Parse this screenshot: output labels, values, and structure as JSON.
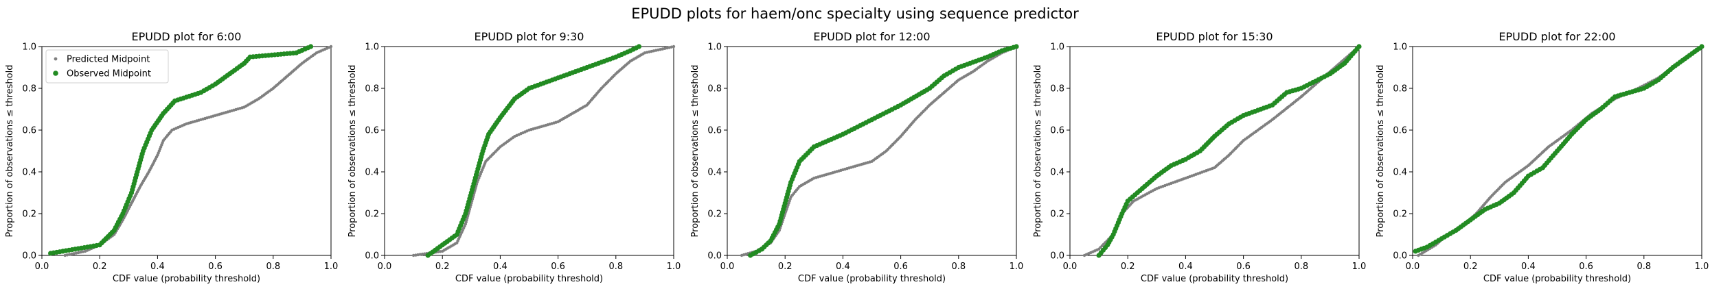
{
  "suptitle": "EPUDD plots for haem/onc specialty using sequence predictor",
  "legend": {
    "predicted_label": "Predicted Midpoint",
    "observed_label": "Observed Midpoint"
  },
  "colors": {
    "predicted": "#808080",
    "observed": "#228B22",
    "axis": "#000000"
  },
  "chart_data": [
    {
      "type": "scatter",
      "title": "EPUDD plot for 6:00",
      "xlabel": "CDF value (probability threshold)",
      "ylabel": "Proportion of observations ≤ threshold",
      "xlim": [
        0,
        1
      ],
      "ylim": [
        0,
        1
      ],
      "xticks": [
        "0.0",
        "0.2",
        "0.4",
        "0.6",
        "0.8",
        "1.0"
      ],
      "yticks": [
        "0.0",
        "0.2",
        "0.4",
        "0.6",
        "0.8",
        "1.0"
      ],
      "legend_position": "upper-left",
      "series": [
        {
          "name": "Predicted Midpoint",
          "points": [
            [
              0.08,
              0.0
            ],
            [
              0.15,
              0.02
            ],
            [
              0.2,
              0.05
            ],
            [
              0.25,
              0.1
            ],
            [
              0.28,
              0.17
            ],
            [
              0.31,
              0.25
            ],
            [
              0.34,
              0.33
            ],
            [
              0.37,
              0.4
            ],
            [
              0.4,
              0.48
            ],
            [
              0.42,
              0.55
            ],
            [
              0.45,
              0.6
            ],
            [
              0.5,
              0.63
            ],
            [
              0.55,
              0.65
            ],
            [
              0.6,
              0.67
            ],
            [
              0.65,
              0.69
            ],
            [
              0.7,
              0.71
            ],
            [
              0.75,
              0.75
            ],
            [
              0.8,
              0.8
            ],
            [
              0.85,
              0.86
            ],
            [
              0.9,
              0.92
            ],
            [
              0.95,
              0.97
            ],
            [
              1.0,
              1.0
            ]
          ]
        },
        {
          "name": "Observed Midpoint",
          "points": [
            [
              0.03,
              0.01
            ],
            [
              0.2,
              0.05
            ],
            [
              0.25,
              0.12
            ],
            [
              0.28,
              0.2
            ],
            [
              0.31,
              0.3
            ],
            [
              0.33,
              0.4
            ],
            [
              0.35,
              0.5
            ],
            [
              0.38,
              0.6
            ],
            [
              0.42,
              0.68
            ],
            [
              0.46,
              0.74
            ],
            [
              0.55,
              0.78
            ],
            [
              0.6,
              0.82
            ],
            [
              0.65,
              0.87
            ],
            [
              0.7,
              0.92
            ],
            [
              0.72,
              0.95
            ],
            [
              0.88,
              0.97
            ],
            [
              0.93,
              1.0
            ]
          ]
        }
      ]
    },
    {
      "type": "scatter",
      "title": "EPUDD plot for 9:30",
      "xlabel": "CDF value (probability threshold)",
      "ylabel": "Proportion of observations ≤ threshold",
      "xlim": [
        0,
        1
      ],
      "ylim": [
        0,
        1
      ],
      "xticks": [
        "0.0",
        "0.2",
        "0.4",
        "0.6",
        "0.8",
        "1.0"
      ],
      "yticks": [
        "0.0",
        "0.2",
        "0.4",
        "0.6",
        "0.8",
        "1.0"
      ],
      "series": [
        {
          "name": "Predicted Midpoint",
          "points": [
            [
              0.1,
              0.0
            ],
            [
              0.2,
              0.02
            ],
            [
              0.25,
              0.06
            ],
            [
              0.28,
              0.15
            ],
            [
              0.3,
              0.25
            ],
            [
              0.32,
              0.35
            ],
            [
              0.35,
              0.45
            ],
            [
              0.4,
              0.52
            ],
            [
              0.45,
              0.57
            ],
            [
              0.5,
              0.6
            ],
            [
              0.6,
              0.64
            ],
            [
              0.65,
              0.68
            ],
            [
              0.7,
              0.72
            ],
            [
              0.75,
              0.8
            ],
            [
              0.8,
              0.87
            ],
            [
              0.85,
              0.93
            ],
            [
              0.9,
              0.97
            ],
            [
              1.0,
              1.0
            ]
          ]
        },
        {
          "name": "Observed Midpoint",
          "points": [
            [
              0.15,
              0.0
            ],
            [
              0.2,
              0.05
            ],
            [
              0.25,
              0.1
            ],
            [
              0.28,
              0.2
            ],
            [
              0.3,
              0.3
            ],
            [
              0.32,
              0.4
            ],
            [
              0.34,
              0.5
            ],
            [
              0.36,
              0.58
            ],
            [
              0.4,
              0.66
            ],
            [
              0.45,
              0.75
            ],
            [
              0.5,
              0.8
            ],
            [
              0.6,
              0.85
            ],
            [
              0.7,
              0.9
            ],
            [
              0.8,
              0.95
            ],
            [
              0.85,
              0.98
            ],
            [
              0.88,
              1.0
            ]
          ]
        }
      ]
    },
    {
      "type": "scatter",
      "title": "EPUDD plot for 12:00",
      "xlabel": "CDF value (probability threshold)",
      "ylabel": "Proportion of observations ≤ threshold",
      "xlim": [
        0,
        1
      ],
      "ylim": [
        0,
        1
      ],
      "xticks": [
        "0.0",
        "0.2",
        "0.4",
        "0.6",
        "0.8",
        "1.0"
      ],
      "yticks": [
        "0.0",
        "0.2",
        "0.4",
        "0.6",
        "0.8",
        "1.0"
      ],
      "series": [
        {
          "name": "Predicted Midpoint",
          "points": [
            [
              0.05,
              0.0
            ],
            [
              0.1,
              0.02
            ],
            [
              0.15,
              0.06
            ],
            [
              0.18,
              0.12
            ],
            [
              0.2,
              0.2
            ],
            [
              0.22,
              0.28
            ],
            [
              0.25,
              0.33
            ],
            [
              0.3,
              0.37
            ],
            [
              0.4,
              0.41
            ],
            [
              0.5,
              0.45
            ],
            [
              0.55,
              0.5
            ],
            [
              0.6,
              0.57
            ],
            [
              0.65,
              0.65
            ],
            [
              0.7,
              0.72
            ],
            [
              0.75,
              0.78
            ],
            [
              0.8,
              0.84
            ],
            [
              0.85,
              0.88
            ],
            [
              0.9,
              0.93
            ],
            [
              0.95,
              0.97
            ],
            [
              1.0,
              1.0
            ]
          ]
        },
        {
          "name": "Observed Midpoint",
          "points": [
            [
              0.08,
              0.0
            ],
            [
              0.12,
              0.03
            ],
            [
              0.15,
              0.07
            ],
            [
              0.18,
              0.15
            ],
            [
              0.2,
              0.25
            ],
            [
              0.22,
              0.35
            ],
            [
              0.25,
              0.45
            ],
            [
              0.3,
              0.52
            ],
            [
              0.4,
              0.58
            ],
            [
              0.5,
              0.65
            ],
            [
              0.6,
              0.72
            ],
            [
              0.7,
              0.8
            ],
            [
              0.75,
              0.86
            ],
            [
              0.8,
              0.9
            ],
            [
              0.9,
              0.95
            ],
            [
              0.95,
              0.98
            ],
            [
              1.0,
              1.0
            ]
          ]
        }
      ]
    },
    {
      "type": "scatter",
      "title": "EPUDD plot for 15:30",
      "xlabel": "CDF value (probability threshold)",
      "ylabel": "Proportion of observations ≤ threshold",
      "xlim": [
        0,
        1
      ],
      "ylim": [
        0,
        1
      ],
      "xticks": [
        "0.0",
        "0.2",
        "0.4",
        "0.6",
        "0.8",
        "1.0"
      ],
      "yticks": [
        "0.0",
        "0.2",
        "0.4",
        "0.6",
        "0.8",
        "1.0"
      ],
      "series": [
        {
          "name": "Predicted Midpoint",
          "points": [
            [
              0.05,
              0.0
            ],
            [
              0.1,
              0.03
            ],
            [
              0.15,
              0.1
            ],
            [
              0.18,
              0.2
            ],
            [
              0.22,
              0.26
            ],
            [
              0.3,
              0.32
            ],
            [
              0.4,
              0.37
            ],
            [
              0.5,
              0.42
            ],
            [
              0.55,
              0.48
            ],
            [
              0.6,
              0.55
            ],
            [
              0.7,
              0.65
            ],
            [
              0.8,
              0.76
            ],
            [
              0.85,
              0.82
            ],
            [
              0.9,
              0.88
            ],
            [
              0.95,
              0.94
            ],
            [
              1.0,
              1.0
            ]
          ]
        },
        {
          "name": "Observed Midpoint",
          "points": [
            [
              0.1,
              0.0
            ],
            [
              0.13,
              0.05
            ],
            [
              0.15,
              0.1
            ],
            [
              0.18,
              0.2
            ],
            [
              0.2,
              0.26
            ],
            [
              0.25,
              0.32
            ],
            [
              0.3,
              0.38
            ],
            [
              0.35,
              0.43
            ],
            [
              0.4,
              0.46
            ],
            [
              0.45,
              0.5
            ],
            [
              0.5,
              0.57
            ],
            [
              0.55,
              0.63
            ],
            [
              0.6,
              0.67
            ],
            [
              0.7,
              0.72
            ],
            [
              0.75,
              0.78
            ],
            [
              0.8,
              0.8
            ],
            [
              0.9,
              0.87
            ],
            [
              0.95,
              0.92
            ],
            [
              1.0,
              1.0
            ]
          ]
        }
      ]
    },
    {
      "type": "scatter",
      "title": "EPUDD plot for 22:00",
      "xlabel": "CDF value (probability threshold)",
      "ylabel": "Proportion of observations ≤ threshold",
      "xlim": [
        0,
        1
      ],
      "ylim": [
        0,
        1
      ],
      "xticks": [
        "0.0",
        "0.2",
        "0.4",
        "0.6",
        "0.8",
        "1.0"
      ],
      "yticks": [
        "0.0",
        "0.2",
        "0.4",
        "0.6",
        "0.8",
        "1.0"
      ],
      "series": [
        {
          "name": "Predicted Midpoint",
          "points": [
            [
              0.02,
              0.0
            ],
            [
              0.08,
              0.05
            ],
            [
              0.12,
              0.1
            ],
            [
              0.18,
              0.15
            ],
            [
              0.22,
              0.2
            ],
            [
              0.27,
              0.28
            ],
            [
              0.32,
              0.35
            ],
            [
              0.4,
              0.43
            ],
            [
              0.47,
              0.52
            ],
            [
              0.55,
              0.6
            ],
            [
              0.62,
              0.68
            ],
            [
              0.7,
              0.75
            ],
            [
              0.78,
              0.8
            ],
            [
              0.85,
              0.85
            ],
            [
              0.9,
              0.9
            ],
            [
              0.95,
              0.95
            ],
            [
              1.0,
              1.0
            ]
          ]
        },
        {
          "name": "Observed Midpoint",
          "points": [
            [
              0.01,
              0.02
            ],
            [
              0.05,
              0.04
            ],
            [
              0.1,
              0.08
            ],
            [
              0.15,
              0.12
            ],
            [
              0.2,
              0.17
            ],
            [
              0.25,
              0.22
            ],
            [
              0.3,
              0.25
            ],
            [
              0.35,
              0.3
            ],
            [
              0.4,
              0.38
            ],
            [
              0.45,
              0.42
            ],
            [
              0.5,
              0.5
            ],
            [
              0.55,
              0.58
            ],
            [
              0.6,
              0.65
            ],
            [
              0.65,
              0.7
            ],
            [
              0.7,
              0.76
            ],
            [
              0.75,
              0.78
            ],
            [
              0.8,
              0.8
            ],
            [
              0.85,
              0.84
            ],
            [
              0.9,
              0.9
            ],
            [
              0.95,
              0.95
            ],
            [
              1.0,
              1.0
            ]
          ]
        }
      ]
    }
  ]
}
